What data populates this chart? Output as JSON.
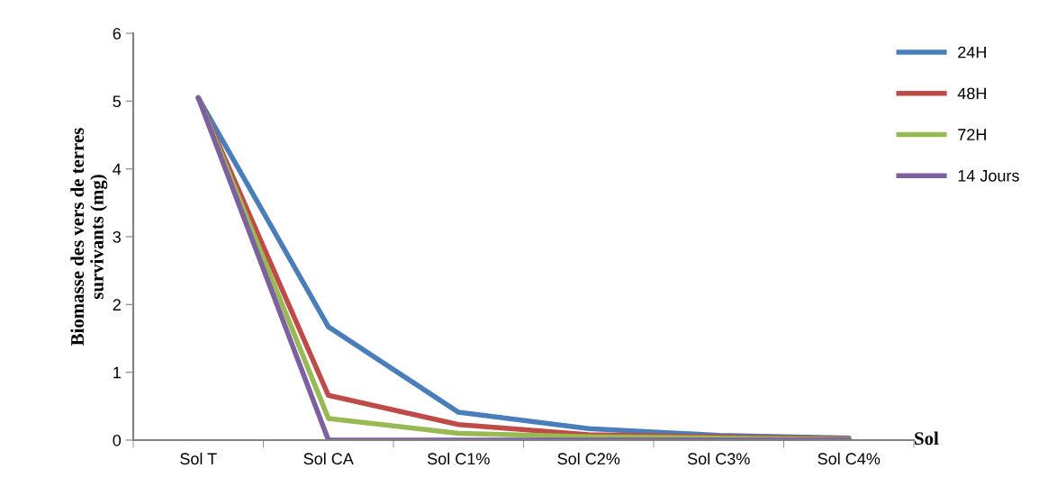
{
  "chart_data": {
    "type": "line",
    "ylabel": "Biomasse des vers de terres\nsurvivants (mg)",
    "xlabel": "Sol",
    "categories": [
      "Sol T",
      "Sol CA",
      "Sol C1%",
      "Sol C2%",
      "Sol C3%",
      "Sol C4%"
    ],
    "series": [
      {
        "name": "24H",
        "color": "#4a7ebb",
        "values": [
          5.05,
          1.67,
          0.41,
          0.17,
          0.07,
          0.03
        ]
      },
      {
        "name": "48H",
        "color": "#be4b48",
        "values": [
          5.05,
          0.66,
          0.23,
          0.08,
          0.05,
          0.02
        ]
      },
      {
        "name": "72H",
        "color": "#98b954",
        "values": [
          5.05,
          0.32,
          0.1,
          0.05,
          0.03,
          0.01
        ]
      },
      {
        "name": "14 Jours",
        "color": "#7d60a0",
        "values": [
          5.05,
          0,
          0,
          0,
          0,
          0
        ]
      }
    ],
    "ylim": [
      0,
      6
    ],
    "yticks": [
      0,
      1,
      2,
      3,
      4,
      5,
      6
    ],
    "grid": false,
    "legend": "right",
    "marker": "none",
    "line_style": "solid"
  }
}
